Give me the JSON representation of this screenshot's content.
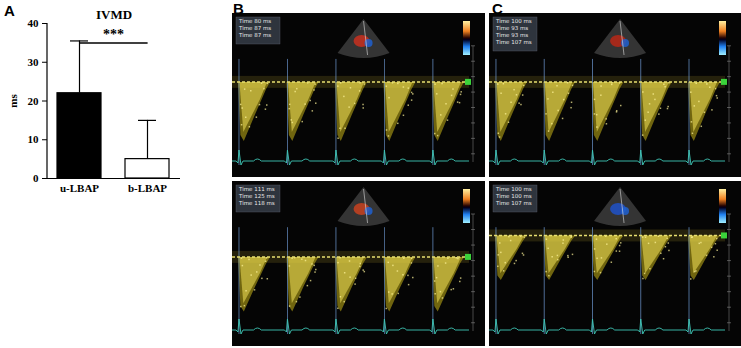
{
  "chart_data": {
    "type": "bar",
    "title": "IVMD",
    "y_label": "ms",
    "categories": [
      "u-LBAP",
      "b-LBAP"
    ],
    "values": [
      22,
      5
    ],
    "errors": [
      13.5,
      10
    ],
    "colors": [
      "#000000",
      "#ffffff"
    ],
    "ylim": [
      0,
      40
    ],
    "yticks": [
      0,
      10,
      20,
      30,
      40
    ],
    "annotations": [
      {
        "text": "***",
        "between": [
          "u-LBAP",
          "b-LBAP"
        ]
      }
    ]
  },
  "panel_labels": [
    "A",
    "B",
    "C"
  ],
  "echo_panels": [
    {
      "images": [
        {
          "measurements": [
            "Time 80 ms",
            "Time 87 ms",
            "Time 87 ms"
          ]
        },
        {
          "measurements": [
            "Time 111 ms",
            "Time 125 ms",
            "Time 118 ms"
          ]
        }
      ]
    },
    {
      "images": [
        {
          "measurements": [
            "Time 100 ms",
            "Time 93 ms",
            "Time 93 ms",
            "Time 107 ms"
          ]
        },
        {
          "measurements": [
            "Time 100 ms",
            "Time 100 ms",
            "Time 107 ms"
          ]
        }
      ]
    }
  ]
}
